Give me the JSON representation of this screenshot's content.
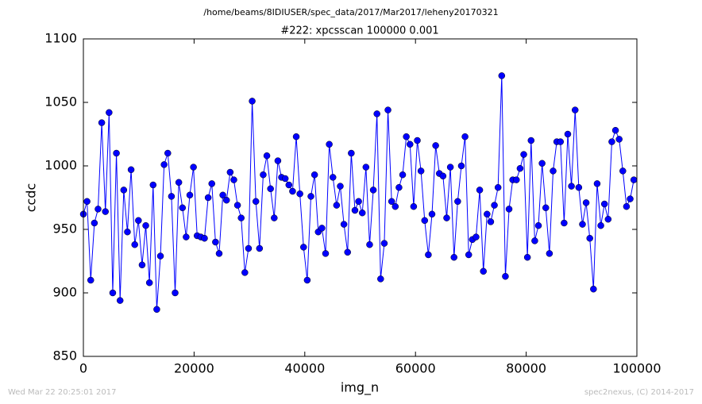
{
  "chart_data": {
    "type": "line",
    "suptitle": "/home/beams/8IDIUSER/spec_data/2017/Mar2017/leheny20170321",
    "title": "#222: xpcsscan 100000 0.001",
    "xlabel": "img_n",
    "ylabel": "ccdc",
    "footer_left": "Wed Mar 22 20:25:01 2017",
    "footer_right": "spec2nexus, (C) 2014-2017",
    "color": "#0000ff",
    "marker": "circle",
    "xlim": [
      0,
      100000
    ],
    "xticks": [
      0,
      20000,
      40000,
      60000,
      80000,
      100000
    ],
    "ylim": [
      850,
      1100
    ],
    "yticks": [
      850,
      900,
      950,
      1000,
      1050,
      1100
    ],
    "x": [
      0,
      663,
      1326,
      1989,
      2652,
      3315,
      3978,
      4641,
      5304,
      5967,
      6630,
      7293,
      7956,
      8619,
      9282,
      9945,
      10608,
      11271,
      11934,
      12597,
      13260,
      13923,
      14586,
      15249,
      15912,
      16575,
      17238,
      17901,
      18564,
      19227,
      19890,
      20553,
      21216,
      21879,
      22542,
      23205,
      23868,
      24531,
      25194,
      25857,
      26520,
      27183,
      27846,
      28509,
      29172,
      29835,
      30498,
      31161,
      31824,
      32487,
      33150,
      33813,
      34476,
      35139,
      35802,
      36465,
      37128,
      37791,
      38454,
      39117,
      39780,
      40443,
      41106,
      41769,
      42432,
      43095,
      43758,
      44421,
      45084,
      45747,
      46410,
      47073,
      47736,
      48399,
      49062,
      49725,
      50388,
      51051,
      51714,
      52377,
      53040,
      53703,
      54366,
      55029,
      55692,
      56355,
      57018,
      57681,
      58344,
      59007,
      59670,
      60333,
      60996,
      61659,
      62322,
      62985,
      63648,
      64311,
      64974,
      65637,
      66300,
      66963,
      67626,
      68289,
      68952,
      69615,
      70278,
      70941,
      71604,
      72267,
      72930,
      73593,
      74256,
      74919,
      75582,
      76245,
      76908,
      77571,
      78234,
      78897,
      79560,
      80223,
      80886,
      81549,
      82212,
      82875,
      83538,
      84201,
      84864,
      85527,
      86190,
      86853,
      87516,
      88179,
      88842,
      89505,
      90168,
      90831,
      91494,
      92157,
      92820,
      93483,
      94146,
      94809,
      95472,
      96135,
      96798,
      97461,
      98124,
      98787,
      99450
    ],
    "values": [
      962,
      972,
      910,
      955,
      966,
      1034,
      964,
      1042,
      900,
      1010,
      894,
      981,
      948,
      997,
      938,
      957,
      922,
      953,
      908,
      985,
      887,
      929,
      1001,
      1010,
      976,
      900,
      987,
      967,
      944,
      977,
      999,
      945,
      944,
      943,
      975,
      986,
      940,
      931,
      977,
      973,
      995,
      989,
      969,
      959,
      916,
      935,
      1051,
      972,
      935,
      993,
      1008,
      982,
      959,
      1004,
      991,
      990,
      985,
      980,
      1023,
      978,
      936,
      910,
      976,
      993,
      948,
      951,
      931,
      1017,
      991,
      969,
      984,
      954,
      932,
      1010,
      965,
      972,
      963,
      999,
      938,
      981,
      1041,
      911,
      939,
      1044,
      972,
      968,
      983,
      993,
      1023,
      1017,
      968,
      1020,
      996,
      957,
      930,
      962,
      1016,
      994,
      992,
      959,
      999,
      928,
      972,
      1000,
      1023,
      930,
      942,
      944,
      981,
      917,
      962,
      956,
      969,
      983,
      1071,
      913,
      966,
      989,
      989,
      998,
      1009,
      928,
      1020,
      941,
      953,
      1002,
      967,
      931,
      996,
      1019,
      1019,
      955,
      1025,
      984,
      1044,
      983,
      954,
      971,
      943,
      903,
      986,
      953,
      970,
      958,
      1019,
      1028,
      1021,
      996,
      968,
      974,
      989
    ]
  }
}
